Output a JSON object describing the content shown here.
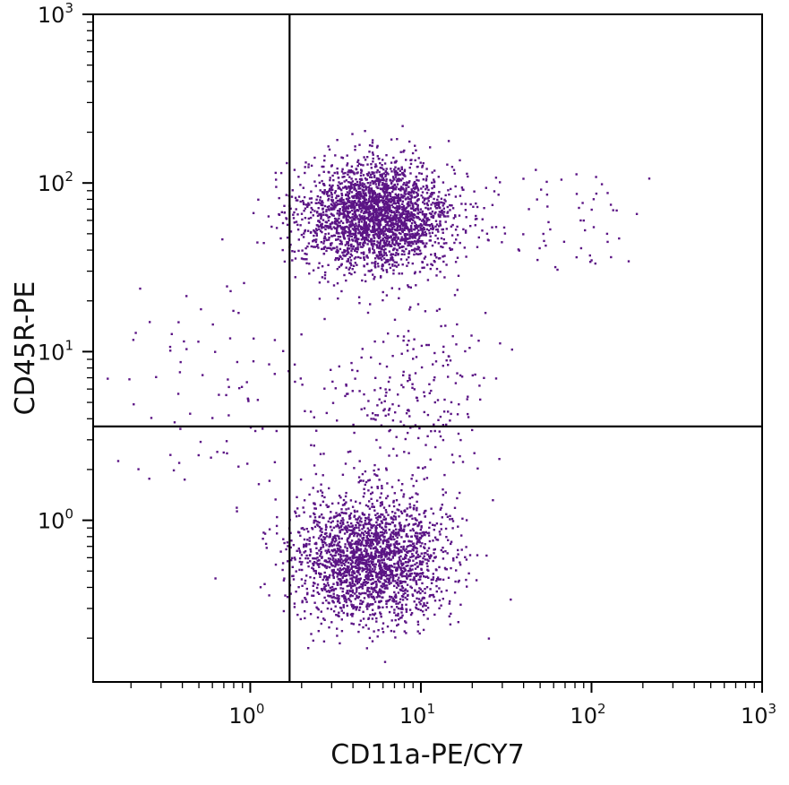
{
  "chart_data": {
    "type": "scatter",
    "title": "",
    "xlabel": "CD11a-PE/CY7",
    "ylabel": "CD45R-PE",
    "xscale": "log",
    "yscale": "log",
    "xlim": [
      0.12,
      1000
    ],
    "ylim": [
      0.11,
      1000
    ],
    "x_tick_labels": [
      {
        "value": 1,
        "base": "10",
        "exp": "0"
      },
      {
        "value": 10,
        "base": "10",
        "exp": "1"
      },
      {
        "value": 100,
        "base": "10",
        "exp": "2"
      },
      {
        "value": 1000,
        "base": "10",
        "exp": "3"
      }
    ],
    "y_tick_labels": [
      {
        "value": 1,
        "base": "10",
        "exp": "0"
      },
      {
        "value": 10,
        "base": "10",
        "exp": "1"
      },
      {
        "value": 100,
        "base": "10",
        "exp": "2"
      },
      {
        "value": 1000,
        "base": "10",
        "exp": "3"
      }
    ],
    "point_color": "#5b1485",
    "quadrant_gates": {
      "x": 1.7,
      "y": 3.6
    },
    "grid": false,
    "legend": "none",
    "populations": [
      {
        "description_x_center": 5.5,
        "y_center": 65,
        "count": 2600
      },
      {
        "description_x_center": 5.0,
        "y_center": 0.6,
        "count": 2200
      },
      {
        "description_x_center": 9.0,
        "y_center": 5,
        "count": 260
      },
      {
        "description_x_center": 70,
        "y_center": 60,
        "count": 60
      },
      {
        "description_x_center": 0.8,
        "y_center": 5,
        "count": 110
      }
    ]
  }
}
